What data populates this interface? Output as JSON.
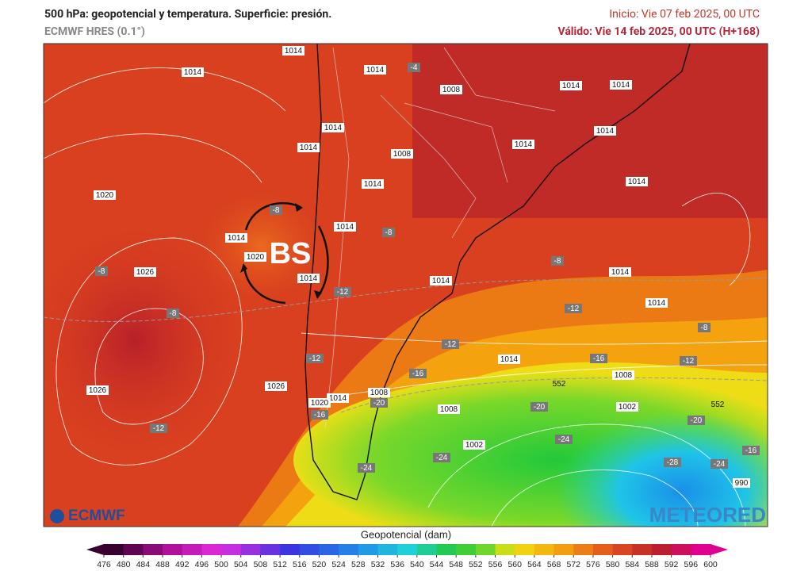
{
  "header": {
    "title": "500 hPa: geopotencial y temperatura. Superficie: presión.",
    "model": "ECMWF HRES (0.1°)",
    "init": "Inicio: Vie 07 feb 2025, 00 UTC",
    "valid": "Válido: Vie 14 feb 2025, 00 UTC (H+168)"
  },
  "map": {
    "annotation": "BS",
    "labels": [
      "1014",
      "1014",
      "1014",
      "1008",
      "1014",
      "1014",
      "1014",
      "1014",
      "1014",
      "1014",
      "1014",
      "1014",
      "1014",
      "1014",
      "1014",
      "1014",
      "1014",
      "1014",
      "1014",
      "1014",
      "1008",
      "1008",
      "1008",
      "1008",
      "1020",
      "1020",
      "1020",
      "1026",
      "1026",
      "1026",
      "1002",
      "1002",
      "990",
      "-4",
      "-8",
      "-8",
      "-8",
      "-8",
      "-8",
      "-8",
      "-12",
      "-12",
      "-12",
      "-12",
      "-12",
      "-12",
      "-16",
      "-16",
      "-16",
      "-16",
      "-20",
      "-20",
      "-20",
      "-24",
      "-24",
      "-24",
      "-24",
      "-28",
      "552",
      "552"
    ]
  },
  "logos": {
    "left": "ECMWF",
    "right": "METEORED"
  },
  "colorbar": {
    "title": "Geopotencial (dam)",
    "ticks": [
      476,
      480,
      484,
      488,
      492,
      496,
      500,
      504,
      508,
      512,
      516,
      520,
      524,
      528,
      532,
      536,
      540,
      544,
      548,
      552,
      556,
      560,
      564,
      568,
      572,
      576,
      580,
      584,
      588,
      592,
      596,
      600
    ]
  }
}
